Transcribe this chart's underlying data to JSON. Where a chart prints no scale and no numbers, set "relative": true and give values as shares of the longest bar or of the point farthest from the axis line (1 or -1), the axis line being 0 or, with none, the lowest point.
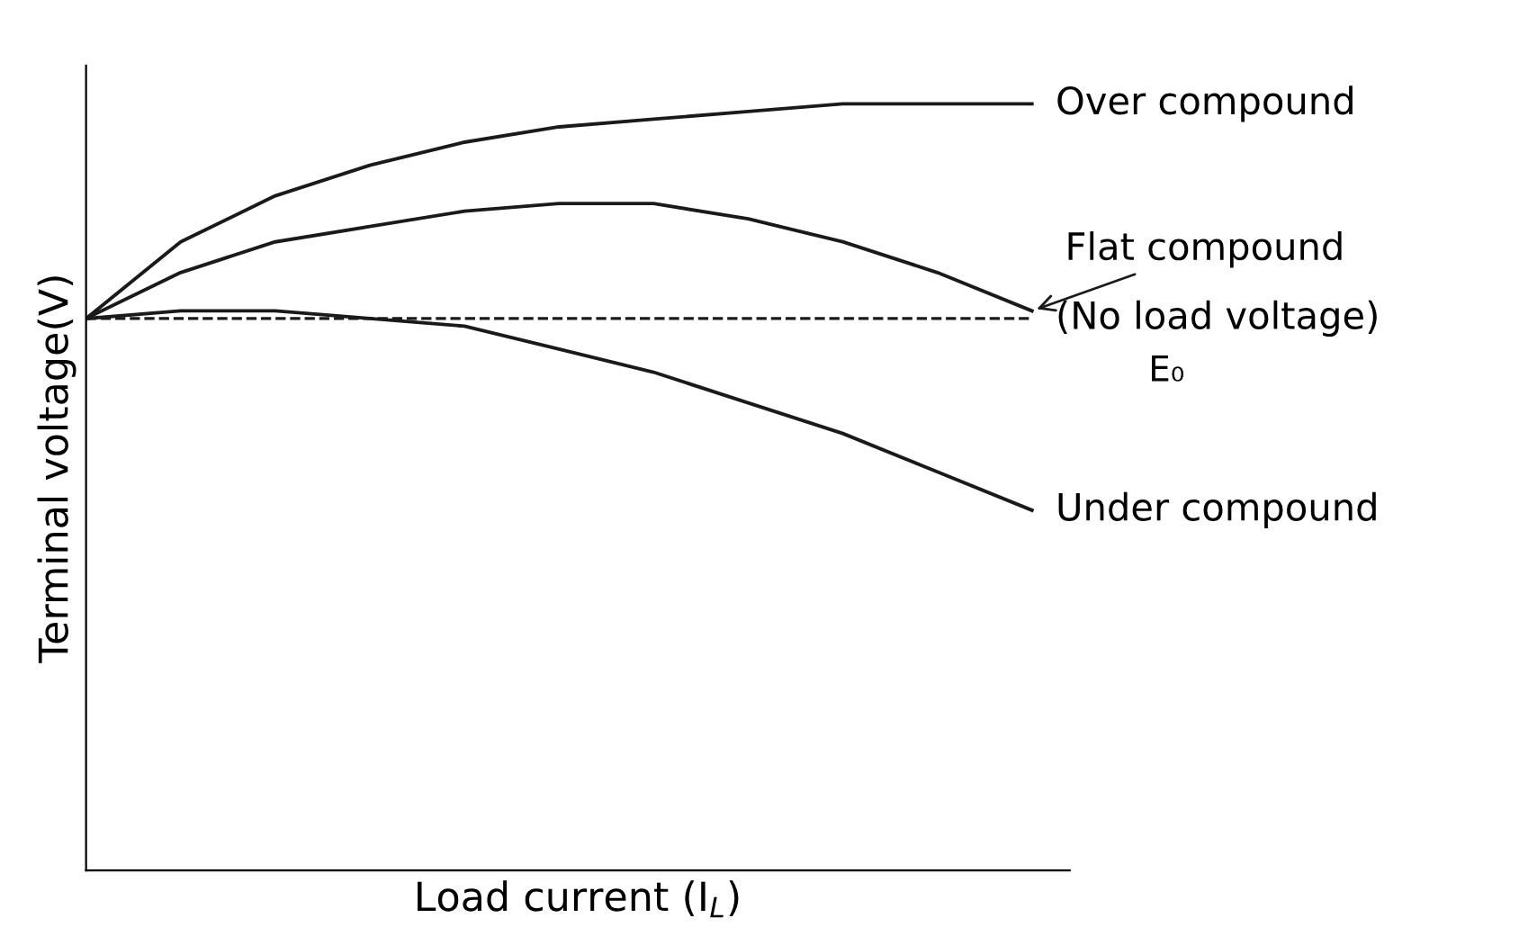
{
  "chart_data": {
    "type": "line",
    "relative": true,
    "xlabel": "Load current (I$_{L}$)",
    "ylabel": "Terminal voltage(V)",
    "categories": [
      null,
      null,
      null,
      null,
      null,
      null,
      null,
      null,
      null,
      null,
      null
    ],
    "series": [
      {
        "name": "Over compound",
        "color": "#1a1a1a",
        "values": [
          0.72,
          0.82,
          0.88,
          0.92,
          0.95,
          0.97,
          0.98,
          0.99,
          1.0,
          1.0,
          1.0
        ]
      },
      {
        "name": "Flat compound",
        "color": "#1a1a1a",
        "values": [
          0.72,
          0.78,
          0.82,
          0.84,
          0.86,
          0.87,
          0.87,
          0.85,
          0.82,
          0.78,
          0.73
        ]
      },
      {
        "name": "Under compound",
        "color": "#1a1a1a",
        "values": [
          0.72,
          0.73,
          0.73,
          0.72,
          0.71,
          0.68,
          0.65,
          0.61,
          0.57,
          0.52,
          0.47
        ]
      }
    ],
    "ref_lines": [
      {
        "axis": "y",
        "value": 0.72,
        "label": "(No load voltage)",
        "color": "#1a1a1a",
        "line_style": "dashed"
      }
    ],
    "annotations": [
      "E₀"
    ],
    "legend": false,
    "marker": "none",
    "line_style": "solid"
  }
}
